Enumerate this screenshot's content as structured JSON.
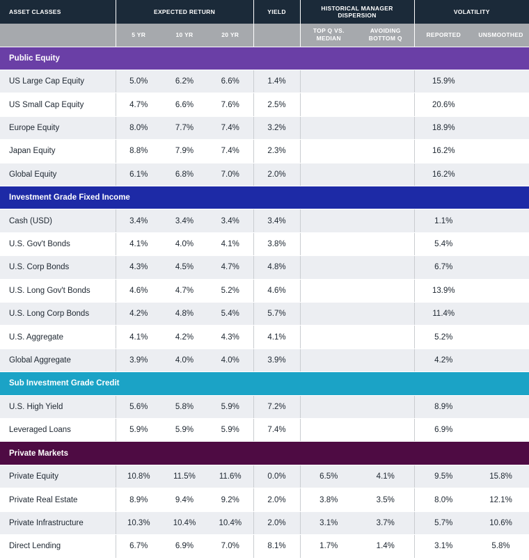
{
  "header": {
    "asset_classes": "ASSET CLASSES",
    "expected_return": "EXPECTED RETURN",
    "yield": "YIELD",
    "dispersion_line1": "HISTORICAL MANAGER",
    "dispersion_line2": "DISPERSION",
    "volatility": "VOLATILITY",
    "sub": {
      "yr5": "5 YR",
      "yr10": "10 YR",
      "yr20": "20 YR",
      "topq_line1": "TOP Q VS.",
      "topq_line2": "MEDIAN",
      "avoid_line1": "AVOIDING",
      "avoid_line2": "BOTTOM Q",
      "reported": "REPORTED",
      "unsmoothed": "UNSMOOTHED"
    }
  },
  "colors": {
    "header_dark": "#1b2a39",
    "header_gray": "#a6a9ad",
    "public_equity": "#6a3fa6",
    "investment_grade": "#1d2aa6",
    "sub_investment_grade": "#1ba3c6",
    "private_markets": "#4e0b43",
    "row_shade": "#eceef2"
  },
  "sections": [
    {
      "title": "Public Equity",
      "color": "#6a3fa6",
      "rows": [
        {
          "name": "US Large Cap Equity",
          "r5": "5.0%",
          "r10": "6.2%",
          "r20": "6.6%",
          "yield": "1.4%",
          "topq": "",
          "avoid": "",
          "reported": "15.9%",
          "unsmoothed": ""
        },
        {
          "name": "US Small Cap Equity",
          "r5": "4.7%",
          "r10": "6.6%",
          "r20": "7.6%",
          "yield": "2.5%",
          "topq": "",
          "avoid": "",
          "reported": "20.6%",
          "unsmoothed": ""
        },
        {
          "name": "Europe Equity",
          "r5": "8.0%",
          "r10": "7.7%",
          "r20": "7.4%",
          "yield": "3.2%",
          "topq": "",
          "avoid": "",
          "reported": "18.9%",
          "unsmoothed": ""
        },
        {
          "name": "Japan Equity",
          "r5": "8.8%",
          "r10": "7.9%",
          "r20": "7.4%",
          "yield": "2.3%",
          "topq": "",
          "avoid": "",
          "reported": "16.2%",
          "unsmoothed": ""
        },
        {
          "name": "Global Equity",
          "r5": "6.1%",
          "r10": "6.8%",
          "r20": "7.0%",
          "yield": "2.0%",
          "topq": "",
          "avoid": "",
          "reported": "16.2%",
          "unsmoothed": ""
        }
      ]
    },
    {
      "title": "Investment Grade Fixed Income",
      "color": "#1d2aa6",
      "rows": [
        {
          "name": "Cash (USD)",
          "r5": "3.4%",
          "r10": "3.4%",
          "r20": "3.4%",
          "yield": "3.4%",
          "topq": "",
          "avoid": "",
          "reported": "1.1%",
          "unsmoothed": ""
        },
        {
          "name": "U.S. Gov't Bonds",
          "r5": "4.1%",
          "r10": "4.0%",
          "r20": "4.1%",
          "yield": "3.8%",
          "topq": "",
          "avoid": "",
          "reported": "5.4%",
          "unsmoothed": ""
        },
        {
          "name": "U.S. Corp Bonds",
          "r5": "4.3%",
          "r10": "4.5%",
          "r20": "4.7%",
          "yield": "4.8%",
          "topq": "",
          "avoid": "",
          "reported": "6.7%",
          "unsmoothed": ""
        },
        {
          "name": "U.S. Long Gov't Bonds",
          "r5": "4.6%",
          "r10": "4.7%",
          "r20": "5.2%",
          "yield": "4.6%",
          "topq": "",
          "avoid": "",
          "reported": "13.9%",
          "unsmoothed": ""
        },
        {
          "name": "U.S. Long Corp Bonds",
          "r5": "4.2%",
          "r10": "4.8%",
          "r20": "5.4%",
          "yield": "5.7%",
          "topq": "",
          "avoid": "",
          "reported": "11.4%",
          "unsmoothed": ""
        },
        {
          "name": "U.S. Aggregate",
          "r5": "4.1%",
          "r10": "4.2%",
          "r20": "4.3%",
          "yield": "4.1%",
          "topq": "",
          "avoid": "",
          "reported": "5.2%",
          "unsmoothed": ""
        },
        {
          "name": "Global Aggregate",
          "r5": "3.9%",
          "r10": "4.0%",
          "r20": "4.0%",
          "yield": "3.9%",
          "topq": "",
          "avoid": "",
          "reported": "4.2%",
          "unsmoothed": ""
        }
      ]
    },
    {
      "title": "Sub Investment Grade Credit",
      "color": "#1ba3c6",
      "rows": [
        {
          "name": "U.S. High Yield",
          "r5": "5.6%",
          "r10": "5.8%",
          "r20": "5.9%",
          "yield": "7.2%",
          "topq": "",
          "avoid": "",
          "reported": "8.9%",
          "unsmoothed": ""
        },
        {
          "name": "Leveraged Loans",
          "r5": "5.9%",
          "r10": "5.9%",
          "r20": "5.9%",
          "yield": "7.4%",
          "topq": "",
          "avoid": "",
          "reported": "6.9%",
          "unsmoothed": ""
        }
      ]
    },
    {
      "title": "Private Markets",
      "color": "#4e0b43",
      "rows": [
        {
          "name": "Private Equity",
          "r5": "10.8%",
          "r10": "11.5%",
          "r20": "11.6%",
          "yield": "0.0%",
          "topq": "6.5%",
          "avoid": "4.1%",
          "reported": "9.5%",
          "unsmoothed": "15.8%"
        },
        {
          "name": "Private Real Estate",
          "r5": "8.9%",
          "r10": "9.4%",
          "r20": "9.2%",
          "yield": "2.0%",
          "topq": "3.8%",
          "avoid": "3.5%",
          "reported": "8.0%",
          "unsmoothed": "12.1%"
        },
        {
          "name": "Private Infrastructure",
          "r5": "10.3%",
          "r10": "10.4%",
          "r20": "10.4%",
          "yield": "2.0%",
          "topq": "3.1%",
          "avoid": "3.7%",
          "reported": "5.7%",
          "unsmoothed": "10.6%"
        },
        {
          "name": "Direct Lending",
          "r5": "6.7%",
          "r10": "6.9%",
          "r20": "7.0%",
          "yield": "8.1%",
          "topq": "1.7%",
          "avoid": "1.4%",
          "reported": "3.1%",
          "unsmoothed": "5.8%"
        }
      ]
    }
  ]
}
